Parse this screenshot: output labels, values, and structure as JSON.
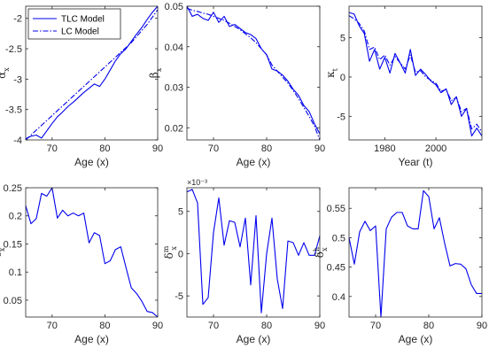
{
  "colors": {
    "series": "#0000ee",
    "axis": "#262626"
  },
  "legend": [
    {
      "name": "TLC Model",
      "style": "solid"
    },
    {
      "name": "LC Model",
      "style": "dashdot"
    }
  ],
  "chart_data": [
    {
      "type": "line",
      "id": "alpha",
      "xlabel": "Age (x)",
      "ylabel_main": "α",
      "ylabel_sub": "x",
      "xlim": [
        65,
        90
      ],
      "ylim": [
        -4,
        -1.8
      ],
      "xticks": [
        70,
        80,
        90
      ],
      "yticks": [
        -4,
        -3.5,
        -3,
        -2.5,
        -2
      ],
      "ytick_labels": [
        "-4",
        "-3.5",
        "-3",
        "-2.5",
        "-2"
      ],
      "legend_location": "top-left",
      "series": [
        {
          "name": "TLC Model",
          "style": "solid",
          "x": [
            65,
            66,
            67,
            68,
            69,
            70,
            71,
            72,
            73,
            74,
            75,
            76,
            77,
            78,
            79,
            80,
            81,
            82,
            83,
            84,
            85,
            86,
            87,
            88,
            89,
            90
          ],
          "y": [
            -3.98,
            -3.94,
            -3.92,
            -3.97,
            -3.85,
            -3.73,
            -3.62,
            -3.54,
            -3.45,
            -3.38,
            -3.3,
            -3.22,
            -3.15,
            -3.08,
            -3.12,
            -3.0,
            -2.85,
            -2.7,
            -2.58,
            -2.5,
            -2.38,
            -2.26,
            -2.15,
            -2.02,
            -1.9,
            -1.8
          ]
        },
        {
          "name": "LC Model",
          "style": "dashdot",
          "x": [
            65,
            66,
            67,
            68,
            69,
            70,
            71,
            72,
            73,
            74,
            75,
            76,
            77,
            78,
            79,
            80,
            81,
            82,
            83,
            84,
            85,
            86,
            87,
            88,
            89,
            90
          ],
          "y": [
            -4.0,
            -3.92,
            -3.84,
            -3.76,
            -3.68,
            -3.6,
            -3.52,
            -3.44,
            -3.36,
            -3.28,
            -3.2,
            -3.12,
            -3.04,
            -2.96,
            -2.88,
            -2.8,
            -2.72,
            -2.64,
            -2.56,
            -2.48,
            -2.4,
            -2.3,
            -2.2,
            -2.1,
            -1.98,
            -1.86
          ]
        }
      ]
    },
    {
      "type": "line",
      "id": "beta",
      "xlabel": "Age (x)",
      "ylabel_main": "β",
      "ylabel_sub": "x",
      "xlim": [
        65,
        90
      ],
      "ylim": [
        0.017,
        0.05
      ],
      "xticks": [
        70,
        80,
        90
      ],
      "yticks": [
        0.02,
        0.03,
        0.04,
        0.05
      ],
      "ytick_labels": [
        "0.02",
        "0.03",
        "0.04",
        "0.05"
      ],
      "series": [
        {
          "name": "TLC Model",
          "style": "solid",
          "x": [
            65,
            66,
            67,
            68,
            69,
            70,
            71,
            72,
            73,
            74,
            75,
            76,
            77,
            78,
            79,
            80,
            81,
            82,
            83,
            84,
            85,
            86,
            87,
            88,
            89,
            90
          ],
          "y": [
            0.05,
            0.0475,
            0.048,
            0.047,
            0.0465,
            0.0485,
            0.046,
            0.0475,
            0.045,
            0.0455,
            0.0445,
            0.0435,
            0.043,
            0.042,
            0.0395,
            0.038,
            0.0345,
            0.034,
            0.033,
            0.0315,
            0.0295,
            0.028,
            0.0255,
            0.024,
            0.021,
            0.0185
          ]
        },
        {
          "name": "LC Model",
          "style": "dashdot",
          "x": [
            65,
            66,
            67,
            68,
            69,
            70,
            71,
            72,
            73,
            74,
            75,
            76,
            77,
            78,
            79,
            80,
            81,
            82,
            83,
            84,
            85,
            86,
            87,
            88,
            89,
            90
          ],
          "y": [
            0.0495,
            0.049,
            0.0487,
            0.0483,
            0.048,
            0.0475,
            0.047,
            0.0465,
            0.0458,
            0.045,
            0.0442,
            0.0432,
            0.0422,
            0.041,
            0.0395,
            0.038,
            0.0355,
            0.034,
            0.0325,
            0.031,
            0.0292,
            0.0272,
            0.025,
            0.0228,
            0.0204,
            0.017
          ]
        }
      ]
    },
    {
      "type": "line",
      "id": "kappa",
      "xlabel": "Year (t)",
      "ylabel_main": "κ",
      "ylabel_sub": "t",
      "xlim": [
        1966,
        2018
      ],
      "ylim": [
        -8,
        9
      ],
      "xticks": [
        1980,
        2000
      ],
      "yticks": [
        -5,
        0,
        5
      ],
      "ytick_labels": [
        "-5",
        "0",
        "5"
      ],
      "series": [
        {
          "name": "TLC Model",
          "style": "solid",
          "x": [
            1966,
            1968,
            1970,
            1972,
            1974,
            1976,
            1978,
            1980,
            1982,
            1984,
            1986,
            1988,
            1990,
            1992,
            1994,
            1996,
            1998,
            2000,
            2002,
            2004,
            2006,
            2008,
            2010,
            2012,
            2014,
            2016,
            2018
          ],
          "y": [
            8.2,
            8.0,
            6.5,
            5.5,
            2.0,
            3.5,
            1.0,
            2.5,
            0.5,
            3.0,
            1.8,
            0.5,
            3.5,
            0.2,
            1.0,
            0.3,
            -0.5,
            -1.0,
            -2.0,
            -1.5,
            -3.5,
            -2.5,
            -5.0,
            -4.0,
            -7.5,
            -6.5,
            -7.5
          ]
        },
        {
          "name": "LC Model",
          "style": "dashdot",
          "x": [
            1966,
            1968,
            1970,
            1972,
            1974,
            1976,
            1978,
            1980,
            1982,
            1984,
            1986,
            1988,
            1990,
            1992,
            1994,
            1996,
            1998,
            2000,
            2002,
            2004,
            2006,
            2008,
            2010,
            2012,
            2014,
            2016,
            2018
          ],
          "y": [
            7.8,
            7.4,
            6.8,
            5.8,
            3.5,
            3.8,
            2.2,
            2.8,
            1.5,
            2.6,
            1.8,
            1.0,
            2.8,
            0.6,
            0.8,
            0.0,
            -0.4,
            -0.8,
            -1.8,
            -1.6,
            -3.0,
            -2.6,
            -4.4,
            -4.0,
            -6.6,
            -6.0,
            -7.0
          ]
        }
      ]
    },
    {
      "type": "line",
      "id": "delta_c",
      "xlabel": "Age (x)",
      "ylabel_main": "δ",
      "ylabel_sup": "c",
      "ylabel_sub": "x",
      "xlim": [
        65,
        90
      ],
      "ylim": [
        0.02,
        0.25
      ],
      "xticks": [
        70,
        80,
        90
      ],
      "yticks": [
        0.05,
        0.1,
        0.15,
        0.2,
        0.25
      ],
      "ytick_labels": [
        "0.05",
        "0.1",
        "0.15",
        "0.2",
        "0.25"
      ],
      "series": [
        {
          "name": "TLC Model",
          "style": "solid",
          "x": [
            65,
            66,
            67,
            68,
            69,
            70,
            71,
            72,
            73,
            74,
            75,
            76,
            77,
            78,
            79,
            80,
            81,
            82,
            83,
            84,
            85,
            86,
            87,
            88,
            89,
            90
          ],
          "y": [
            0.218,
            0.186,
            0.195,
            0.24,
            0.235,
            0.25,
            0.196,
            0.21,
            0.2,
            0.205,
            0.2,
            0.205,
            0.152,
            0.17,
            0.165,
            0.115,
            0.12,
            0.14,
            0.145,
            0.108,
            0.072,
            0.062,
            0.048,
            0.03,
            0.028,
            0.02
          ]
        }
      ]
    },
    {
      "type": "line",
      "id": "delta_m",
      "xlabel": "Age (x)",
      "ylabel_main": "δ",
      "ylabel_sup": "m",
      "ylabel_sub": "x",
      "exponent_label": "×10⁻³",
      "xlim": [
        65,
        90
      ],
      "ylim": [
        -7.5,
        7.8
      ],
      "xticks": [
        70,
        80,
        90
      ],
      "yticks": [
        -5,
        0,
        5
      ],
      "ytick_labels": [
        "-5",
        "0",
        "5"
      ],
      "series": [
        {
          "name": "TLC Model",
          "style": "solid",
          "x": [
            65,
            66,
            67,
            68,
            69,
            70,
            71,
            72,
            73,
            74,
            75,
            76,
            77,
            78,
            79,
            80,
            81,
            82,
            83,
            84,
            85,
            86,
            87,
            88,
            89,
            90
          ],
          "y": [
            7.3,
            7.6,
            6.0,
            -6.0,
            -5.2,
            2.5,
            6.6,
            1.0,
            3.9,
            3.7,
            0.8,
            4.2,
            -3.7,
            4.5,
            -7.0,
            0.0,
            4.2,
            -3.0,
            -6.5,
            1.5,
            1.3,
            -0.2,
            1.3,
            -0.2,
            -0.2,
            2.1
          ]
        }
      ]
    },
    {
      "type": "line",
      "id": "delta_h",
      "xlabel": "Age (x)",
      "ylabel_main": "δ",
      "ylabel_sup": "h",
      "ylabel_sub": "x",
      "xlim": [
        65,
        90
      ],
      "ylim": [
        0.365,
        0.585
      ],
      "xticks": [
        70,
        80,
        90
      ],
      "yticks": [
        0.4,
        0.45,
        0.5,
        0.55
      ],
      "ytick_labels": [
        "0.4",
        "0.45",
        "0.5",
        "0.55"
      ],
      "series": [
        {
          "name": "TLC Model",
          "style": "solid",
          "x": [
            65,
            66,
            67,
            68,
            69,
            70,
            71,
            72,
            73,
            74,
            75,
            76,
            77,
            78,
            79,
            80,
            81,
            82,
            83,
            84,
            85,
            86,
            87,
            88,
            89,
            90
          ],
          "y": [
            0.5,
            0.455,
            0.51,
            0.528,
            0.512,
            0.52,
            0.365,
            0.515,
            0.535,
            0.543,
            0.543,
            0.52,
            0.515,
            0.515,
            0.58,
            0.57,
            0.515,
            0.534,
            0.49,
            0.452,
            0.456,
            0.455,
            0.447,
            0.42,
            0.405,
            0.405
          ]
        }
      ]
    }
  ]
}
